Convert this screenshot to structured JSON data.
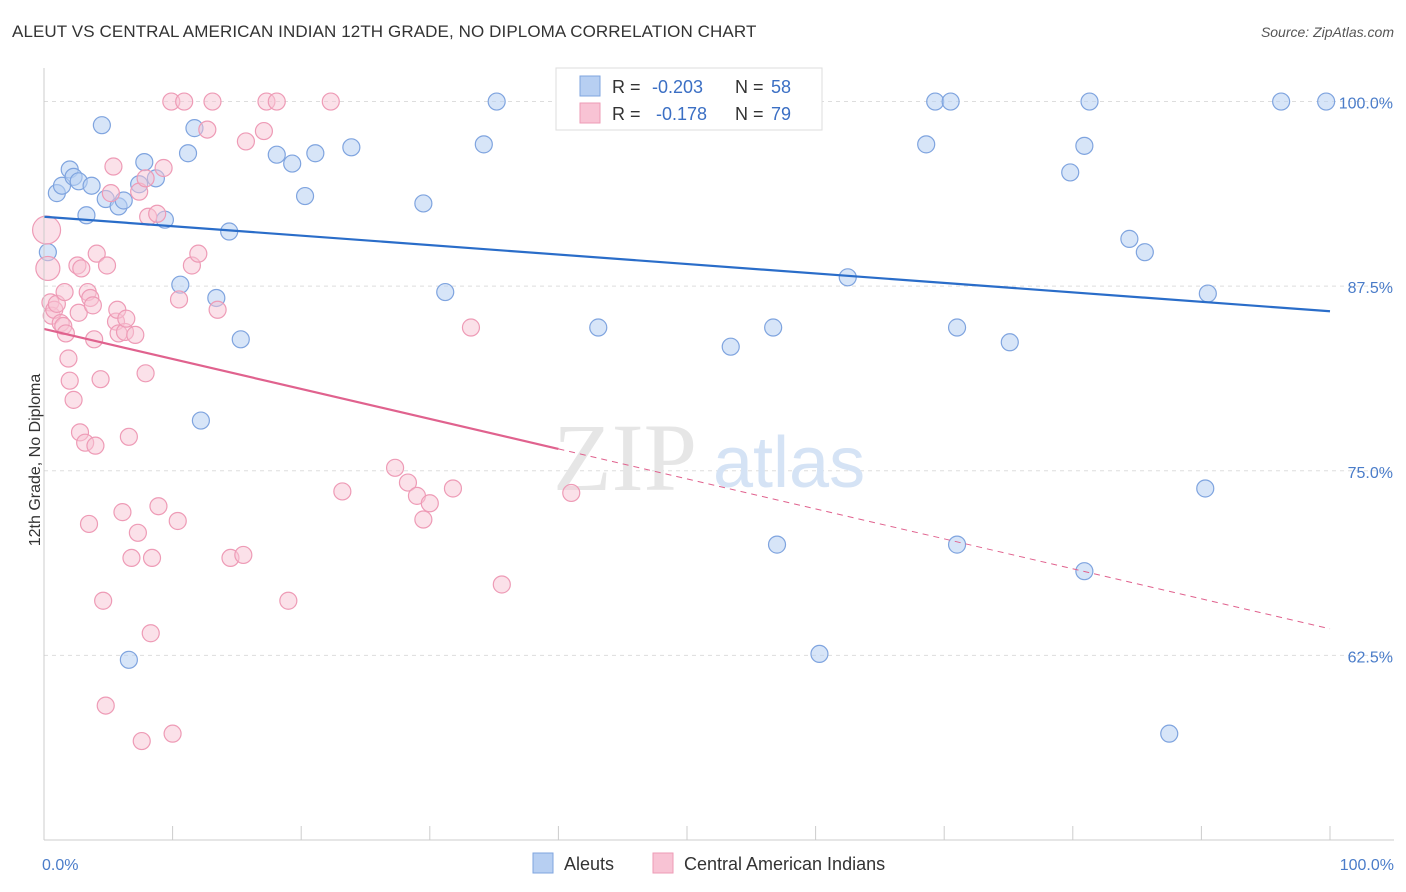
{
  "title": "ALEUT VS CENTRAL AMERICAN INDIAN 12TH GRADE, NO DIPLOMA CORRELATION CHART",
  "source": "Source: ZipAtlas.com",
  "watermark": {
    "zip": "ZIP",
    "atlas": "atlas"
  },
  "colors": {
    "aleuts_fill": "#b7cff2",
    "aleuts_stroke": "#7fa4df",
    "aleuts_line": "#2a6dc9",
    "cai_fill": "#f8c3d4",
    "cai_stroke": "#ee9bb6",
    "cai_line": "#e0628e",
    "axis_text": "#4a7cc9",
    "grid": "#dddddd"
  },
  "chart_data": {
    "type": "scatter",
    "xlabel": "",
    "ylabel": "12th Grade, No Diploma",
    "xlim": [
      0,
      100
    ],
    "ylim": [
      50,
      102
    ],
    "x_tick_labels": [
      "0.0%",
      "100.0%"
    ],
    "y_ticks": [
      {
        "value": 100,
        "label": "100.0%"
      },
      {
        "value": 87.5,
        "label": "87.5%"
      },
      {
        "value": 75,
        "label": "75.0%"
      },
      {
        "value": 62.5,
        "label": "62.5%"
      }
    ],
    "grid": true,
    "legend": {
      "placement": "top-center",
      "entries": [
        {
          "r_label": "R = ",
          "r": "-0.203",
          "n_label": "N = ",
          "n": "58"
        },
        {
          "r_label": "R = ",
          "r": "-0.178",
          "n_label": "N = ",
          "n": "79"
        }
      ]
    },
    "series": [
      {
        "name": "Aleuts",
        "trend": {
          "x": [
            0,
            100
          ],
          "y": [
            92.2,
            85.8
          ],
          "solid_until": 100
        },
        "points": [
          [
            0.3,
            89.8
          ],
          [
            1,
            93.8
          ],
          [
            1.4,
            94.3
          ],
          [
            2,
            95.4
          ],
          [
            2.3,
            94.9
          ],
          [
            2.7,
            94.6
          ],
          [
            3.3,
            92.3
          ],
          [
            3.7,
            94.3
          ],
          [
            4.5,
            98.4
          ],
          [
            4.8,
            93.4
          ],
          [
            5.8,
            92.9
          ],
          [
            6.2,
            93.3
          ],
          [
            7.4,
            94.4
          ],
          [
            7.8,
            95.9
          ],
          [
            8.7,
            94.8
          ],
          [
            9.4,
            92
          ],
          [
            10.6,
            87.6
          ],
          [
            11.2,
            96.5
          ],
          [
            11.7,
            98.2
          ],
          [
            12.2,
            78.4
          ],
          [
            13.4,
            86.7
          ],
          [
            14.4,
            91.2
          ],
          [
            15.3,
            83.9
          ],
          [
            18.1,
            96.4
          ],
          [
            19.3,
            95.8
          ],
          [
            20.3,
            93.6
          ],
          [
            21.1,
            96.5
          ],
          [
            23.9,
            96.9
          ],
          [
            29.5,
            93.1
          ],
          [
            31.2,
            87.1
          ],
          [
            34.2,
            97.1
          ],
          [
            35.2,
            100
          ],
          [
            43.1,
            84.7
          ],
          [
            47.2,
            100
          ],
          [
            53.4,
            83.4
          ],
          [
            55.4,
            100
          ],
          [
            56.7,
            84.7
          ],
          [
            57,
            70
          ],
          [
            60.3,
            62.6
          ],
          [
            62.5,
            88.1
          ],
          [
            68.6,
            97.1
          ],
          [
            69.3,
            100
          ],
          [
            70.5,
            100
          ],
          [
            71,
            84.7
          ],
          [
            71,
            70
          ],
          [
            75.1,
            83.7
          ],
          [
            79.8,
            95.2
          ],
          [
            80.9,
            97
          ],
          [
            80.9,
            68.2
          ],
          [
            81.3,
            100
          ],
          [
            84.4,
            90.7
          ],
          [
            85.6,
            89.8
          ],
          [
            87.5,
            57.2
          ],
          [
            90.3,
            73.8
          ],
          [
            90.5,
            87
          ],
          [
            96.2,
            100
          ],
          [
            99.7,
            100
          ],
          [
            6.6,
            62.2
          ]
        ]
      },
      {
        "name": "Central American Indians",
        "trend": {
          "x": [
            0,
            100
          ],
          "y": [
            84.6,
            64.3
          ],
          "solid_until": 40
        }
      }
    ]
  }
}
